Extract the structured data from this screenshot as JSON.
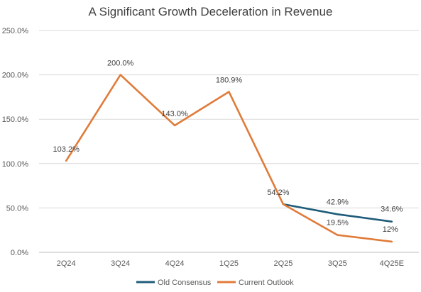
{
  "chart_data": {
    "type": "line",
    "title": "A Significant Growth Deceleration in Revenue",
    "xlabel": "",
    "ylabel": "",
    "categories": [
      "2Q24",
      "3Q24",
      "4Q24",
      "1Q25",
      "2Q25",
      "3Q25",
      "4Q25E"
    ],
    "ylim": [
      0,
      250
    ],
    "yticks": [
      0,
      50,
      100,
      150,
      200,
      250
    ],
    "ytick_labels": [
      "0.0%",
      "50.0%",
      "100.0%",
      "150.0%",
      "200.0%",
      "250.0%"
    ],
    "grid": true,
    "legend_position": "bottom",
    "series": [
      {
        "name": "Old Consensus",
        "color": "#1f5c7a",
        "values": [
          null,
          null,
          null,
          null,
          54.2,
          42.9,
          34.6
        ],
        "labels": [
          null,
          null,
          null,
          null,
          null,
          "42.9%",
          "34.6%"
        ]
      },
      {
        "name": "Current Outlook",
        "color": "#e07b39",
        "values": [
          103.2,
          200.0,
          143.0,
          180.9,
          54.2,
          19.5,
          12
        ],
        "labels": [
          "103.2%",
          "200.0%",
          "143.0%",
          "180.9%",
          "54.2%",
          "19.5%",
          "12%"
        ]
      }
    ]
  }
}
